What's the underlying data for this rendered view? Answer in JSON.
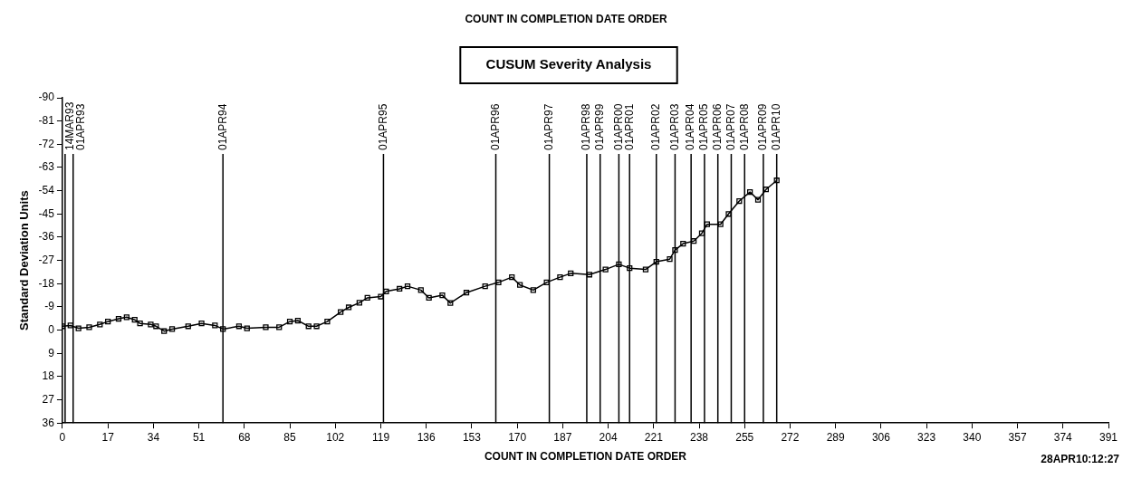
{
  "chart_data": {
    "type": "line",
    "title": "COUNT IN COMPLETION DATE ORDER",
    "subtitle": "CUSUM Severity Analysis",
    "xlabel": "COUNT IN COMPLETION DATE ORDER",
    "ylabel": "Standard Deviation Units",
    "annotations": [
      "28APR10:12:27"
    ],
    "x": [
      0,
      3,
      6,
      10,
      14,
      17,
      21,
      24,
      27,
      29,
      33,
      35,
      38,
      41,
      47,
      52,
      57,
      60,
      66,
      69,
      76,
      81,
      85,
      88,
      92,
      95,
      99,
      104,
      107,
      111,
      114,
      119,
      121,
      126,
      129,
      134,
      137,
      142,
      145,
      151,
      158,
      163,
      168,
      171,
      176,
      181,
      186,
      190,
      197,
      203,
      208,
      212,
      218,
      222,
      227,
      229,
      232,
      236,
      239,
      241,
      246,
      249,
      253,
      257,
      260,
      263,
      267
    ],
    "series": [
      {
        "color": "#000000",
        "values": [
          -1.5,
          -1.8,
          -0.7,
          -1.1,
          -2.2,
          -3.3,
          -4.4,
          -5,
          -4,
          -2.6,
          -2.2,
          -1.5,
          0.4,
          -0.4,
          -1.5,
          -2.6,
          -1.8,
          -0.4,
          -1.5,
          -0.7,
          -1.1,
          -1.1,
          -3.3,
          -3.7,
          -1.5,
          -1.5,
          -3.3,
          -7,
          -8.8,
          -10.6,
          -12.5,
          -13,
          -15,
          -16,
          -17,
          -15.5,
          -12.5,
          -13.5,
          -10.5,
          -14.5,
          -17,
          -18.5,
          -20.5,
          -17.5,
          -15.5,
          -18.5,
          -20.5,
          -22,
          -21.5,
          -23.5,
          -25.5,
          -24,
          -23.5,
          -26.5,
          -27.5,
          -31,
          -33.5,
          -34.5,
          -37.5,
          -41,
          -41,
          -45,
          -50,
          -53.5,
          -50.5,
          -54.5,
          -58
        ]
      }
    ],
    "xlim": [
      0,
      391
    ],
    "xticks": [
      0,
      17,
      34,
      51,
      68,
      85,
      102,
      119,
      136,
      153,
      170,
      187,
      204,
      221,
      238,
      255,
      272,
      289,
      306,
      323,
      340,
      357,
      374,
      391
    ],
    "ylim": [
      36,
      -90
    ],
    "yticks": [
      -90,
      -81,
      -72,
      -63,
      -54,
      -45,
      -36,
      -27,
      -18,
      -9,
      0,
      9,
      18,
      27,
      36
    ],
    "ref_lines": [
      {
        "axis": "x",
        "value": 1,
        "label": "14MAR93"
      },
      {
        "axis": "x",
        "value": 4,
        "label": "01APR93"
      },
      {
        "axis": "x",
        "value": 60,
        "label": "01APR94"
      },
      {
        "axis": "x",
        "value": 120,
        "label": "01APR95"
      },
      {
        "axis": "x",
        "value": 162,
        "label": "01APR96"
      },
      {
        "axis": "x",
        "value": 182,
        "label": "01APR97"
      },
      {
        "axis": "x",
        "value": 196,
        "label": "01APR98"
      },
      {
        "axis": "x",
        "value": 201,
        "label": "01APR99"
      },
      {
        "axis": "x",
        "value": 208,
        "label": "01APR00"
      },
      {
        "axis": "x",
        "value": 212,
        "label": "01APR01"
      },
      {
        "axis": "x",
        "value": 222,
        "label": "01APR02"
      },
      {
        "axis": "x",
        "value": 229,
        "label": "01APR03"
      },
      {
        "axis": "x",
        "value": 235,
        "label": "01APR04"
      },
      {
        "axis": "x",
        "value": 240,
        "label": "01APR05"
      },
      {
        "axis": "x",
        "value": 245,
        "label": "01APR06"
      },
      {
        "axis": "x",
        "value": 250,
        "label": "01APR07"
      },
      {
        "axis": "x",
        "value": 255,
        "label": "01APR08"
      },
      {
        "axis": "x",
        "value": 262,
        "label": "01APR09"
      },
      {
        "axis": "x",
        "value": 267,
        "label": "01APR10"
      }
    ],
    "marker": "square",
    "line_style": "solid",
    "grid": false,
    "legend": false
  }
}
